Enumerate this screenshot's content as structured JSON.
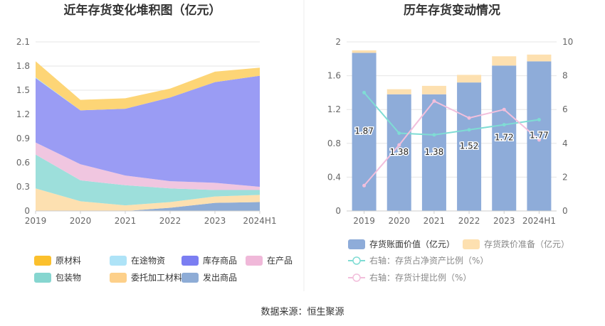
{
  "source_text": "数据来源：恒生聚源",
  "chart_data": [
    {
      "type": "area",
      "stacked": true,
      "title": "近年存货变化堆积图（亿元）",
      "categories": [
        "2019",
        "2020",
        "2021",
        "2022",
        "2023",
        "2024H1"
      ],
      "ylim": [
        0,
        2.1
      ],
      "yticks": [
        "0",
        "0.3",
        "0.6",
        "0.9",
        "1.2",
        "1.5",
        "1.8",
        "2.1"
      ],
      "grid": true,
      "legend_position": "bottom",
      "series": [
        {
          "name": "发出商品",
          "color": "#8eacd6",
          "values": [
            0.0,
            0.0,
            0.0,
            0.04,
            0.1,
            0.11
          ]
        },
        {
          "name": "委托加工材料",
          "color": "#fde0b0",
          "values": [
            0.28,
            0.12,
            0.07,
            0.07,
            0.08,
            0.09
          ]
        },
        {
          "name": "包装物",
          "color": "#9ddfdb",
          "values": [
            0.42,
            0.26,
            0.25,
            0.17,
            0.08,
            0.06
          ]
        },
        {
          "name": "在产品",
          "color": "#f0c6e0",
          "values": [
            0.15,
            0.2,
            0.12,
            0.09,
            0.09,
            0.04
          ]
        },
        {
          "name": "库存商品",
          "color": "#9a9cf4",
          "values": [
            0.8,
            0.67,
            0.83,
            1.04,
            1.25,
            1.38
          ]
        },
        {
          "name": "在途物资",
          "color": "#aee3f7",
          "values": [
            0.01,
            0.0,
            0.0,
            0.0,
            0.0,
            0.0
          ]
        },
        {
          "name": "原材料",
          "color": "#fdd576",
          "values": [
            0.2,
            0.13,
            0.13,
            0.11,
            0.13,
            0.1
          ]
        }
      ],
      "legend_order": [
        "原材料",
        "在途物资",
        "库存商品",
        "在产品",
        "包装物",
        "委托加工材料",
        "发出商品"
      ],
      "legend_colors": [
        "#fbc02d",
        "#aee3f7",
        "#7b7ef2",
        "#f0b8d9",
        "#86d6d0",
        "#fdd08a",
        "#8eacd6"
      ]
    },
    {
      "type": "bar",
      "title": "历年存货变动情况",
      "categories": [
        "2019",
        "2020",
        "2021",
        "2022",
        "2023",
        "2024H1"
      ],
      "ylim": [
        0,
        2
      ],
      "yticks": [
        "0",
        "0.4",
        "0.8",
        "1.2",
        "1.6",
        "2"
      ],
      "y2lim": [
        0,
        10
      ],
      "y2ticks": [
        "0",
        "2",
        "4",
        "6",
        "8",
        "10"
      ],
      "grid": true,
      "legend_position": "bottom",
      "series": [
        {
          "name": "存货账面价值（亿元）",
          "color": "#8eacd9",
          "type": "bar",
          "values": [
            1.87,
            1.38,
            1.38,
            1.52,
            1.72,
            1.77
          ],
          "labels": [
            "1.87",
            "1.38",
            "1.38",
            "1.52",
            "1.72",
            "1.77"
          ]
        },
        {
          "name": "存货跌价准备（亿元）",
          "color": "#fde0b0",
          "type": "bar",
          "values": [
            0.03,
            0.06,
            0.1,
            0.09,
            0.11,
            0.08
          ]
        },
        {
          "name": "右轴：存货占净资产比例（%）",
          "color": "#7fdcd4",
          "type": "line",
          "axis": "right",
          "values": [
            7.0,
            4.6,
            4.5,
            4.8,
            5.1,
            5.4
          ]
        },
        {
          "name": "右轴：存货计提比例（%）",
          "color": "#f2bfdc",
          "type": "line",
          "axis": "right",
          "values": [
            1.5,
            3.9,
            6.5,
            5.5,
            6.0,
            4.2
          ]
        }
      ]
    }
  ]
}
